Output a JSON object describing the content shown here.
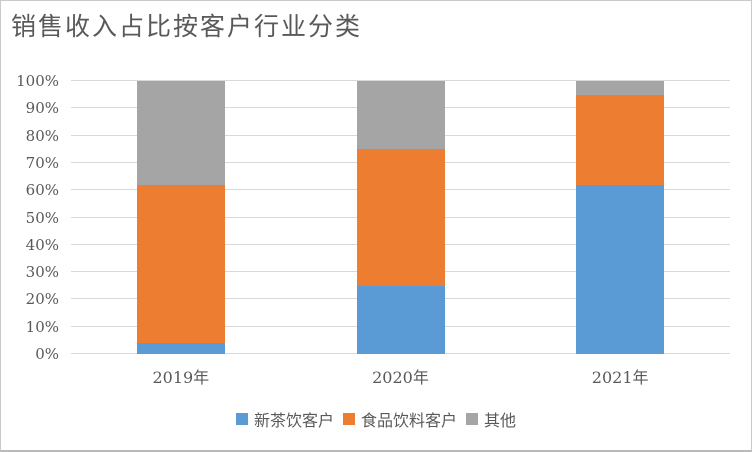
{
  "chart_data": {
    "type": "bar",
    "stacked": true,
    "title": "销售收入占比按客户行业分类",
    "categories": [
      "2019年",
      "2020年",
      "2021年"
    ],
    "series": [
      {
        "name": "新茶饮客户",
        "color": "#5B9BD5",
        "values": [
          4,
          25,
          62
        ]
      },
      {
        "name": "食品饮料客户",
        "color": "#ED7D31",
        "values": [
          58,
          50,
          33
        ]
      },
      {
        "name": "其他",
        "color": "#A5A5A5",
        "values": [
          38,
          25,
          5
        ]
      }
    ],
    "ylabel": "",
    "xlabel": "",
    "ylim": [
      0,
      100
    ],
    "y_ticks": [
      "0%",
      "10%",
      "20%",
      "30%",
      "40%",
      "50%",
      "60%",
      "70%",
      "80%",
      "90%",
      "100%"
    ],
    "y_step": 10,
    "grid": true,
    "legend_position": "bottom",
    "colors": {
      "text": "#595959",
      "gridline": "#d9d9d9",
      "axis_line": "#d9d9d9",
      "frame_border": "#c9c9c9",
      "background": "#ffffff"
    }
  }
}
